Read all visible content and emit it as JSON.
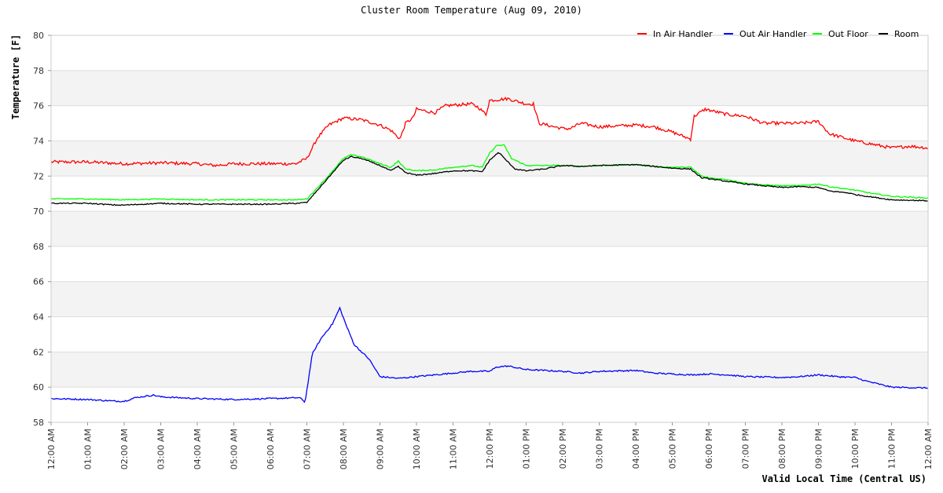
{
  "chart_data": {
    "type": "line",
    "title": "Cluster Room Temperature (Aug 09, 2010)",
    "xlabel": "Valid Local Time (Central US)",
    "ylabel": "Temperature [F]",
    "ylim": [
      58,
      80
    ],
    "yticks": [
      58,
      60,
      62,
      64,
      66,
      68,
      70,
      72,
      74,
      76,
      78,
      80
    ],
    "xlim": [
      0,
      24
    ],
    "x_tick_labels": [
      "12:00 AM",
      "01:00 AM",
      "02:00 AM",
      "03:00 AM",
      "04:00 AM",
      "05:00 AM",
      "06:00 AM",
      "07:00 AM",
      "08:00 AM",
      "09:00 AM",
      "10:00 AM",
      "11:00 AM",
      "12:00 PM",
      "01:00 PM",
      "02:00 PM",
      "03:00 PM",
      "04:00 PM",
      "05:00 PM",
      "06:00 PM",
      "07:00 PM",
      "08:00 PM",
      "09:00 PM",
      "10:00 PM",
      "11:00 PM",
      "12:00 AM"
    ],
    "grid": true,
    "legend_position": "top-right",
    "series": [
      {
        "name": "In Air Handler",
        "color": "#ff0000",
        "points": [
          [
            0,
            72.8
          ],
          [
            1,
            72.8
          ],
          [
            2,
            72.7
          ],
          [
            3,
            72.75
          ],
          [
            4,
            72.7
          ],
          [
            4.5,
            72.6
          ],
          [
            5,
            72.7
          ],
          [
            6,
            72.7
          ],
          [
            6.7,
            72.7
          ],
          [
            7,
            73.0
          ],
          [
            7.3,
            74.2
          ],
          [
            7.6,
            74.9
          ],
          [
            8,
            75.3
          ],
          [
            8.5,
            75.2
          ],
          [
            9,
            74.9
          ],
          [
            9.3,
            74.6
          ],
          [
            9.55,
            74.1
          ],
          [
            9.7,
            75.0
          ],
          [
            9.9,
            75.3
          ],
          [
            10,
            75.8
          ],
          [
            10.5,
            75.6
          ],
          [
            10.8,
            76.0
          ],
          [
            11.5,
            76.1
          ],
          [
            11.7,
            75.9
          ],
          [
            11.9,
            75.5
          ],
          [
            12,
            76.3
          ],
          [
            12.5,
            76.4
          ],
          [
            13,
            76.1
          ],
          [
            13.2,
            76.1
          ],
          [
            13.35,
            75.0
          ],
          [
            14,
            74.7
          ],
          [
            14.2,
            74.7
          ],
          [
            14.5,
            75.0
          ],
          [
            15,
            74.8
          ],
          [
            16,
            74.9
          ],
          [
            16.5,
            74.8
          ],
          [
            17,
            74.5
          ],
          [
            17.5,
            74.1
          ],
          [
            17.6,
            75.4
          ],
          [
            17.9,
            75.8
          ],
          [
            18.5,
            75.5
          ],
          [
            19,
            75.4
          ],
          [
            19.5,
            75.0
          ],
          [
            20,
            75.0
          ],
          [
            20.5,
            75.0
          ],
          [
            21,
            75.1
          ],
          [
            21.3,
            74.4
          ],
          [
            22,
            74.0
          ],
          [
            22.5,
            73.8
          ],
          [
            23,
            73.6
          ],
          [
            23.5,
            73.7
          ],
          [
            24,
            73.6
          ]
        ]
      },
      {
        "name": "Out Air Handler",
        "color": "#0000ff",
        "points": [
          [
            0,
            59.35
          ],
          [
            1,
            59.3
          ],
          [
            1.8,
            59.2
          ],
          [
            2,
            59.2
          ],
          [
            2.3,
            59.4
          ],
          [
            2.8,
            59.55
          ],
          [
            3,
            59.45
          ],
          [
            4,
            59.35
          ],
          [
            5,
            59.3
          ],
          [
            6,
            59.35
          ],
          [
            6.8,
            59.4
          ],
          [
            6.95,
            59.15
          ],
          [
            7.15,
            61.9
          ],
          [
            7.4,
            62.8
          ],
          [
            7.7,
            63.6
          ],
          [
            7.9,
            64.5
          ],
          [
            8.1,
            63.4
          ],
          [
            8.3,
            62.4
          ],
          [
            8.7,
            61.6
          ],
          [
            9,
            60.6
          ],
          [
            9.5,
            60.5
          ],
          [
            10,
            60.6
          ],
          [
            10.5,
            60.7
          ],
          [
            11,
            60.8
          ],
          [
            11.5,
            60.9
          ],
          [
            12,
            60.9
          ],
          [
            12.2,
            61.15
          ],
          [
            12.5,
            61.2
          ],
          [
            13,
            61.0
          ],
          [
            14,
            60.9
          ],
          [
            14.5,
            60.8
          ],
          [
            15,
            60.9
          ],
          [
            16,
            60.95
          ],
          [
            16.5,
            60.8
          ],
          [
            17,
            60.75
          ],
          [
            17.5,
            60.7
          ],
          [
            18,
            60.75
          ],
          [
            18.5,
            60.7
          ],
          [
            19,
            60.6
          ],
          [
            20,
            60.55
          ],
          [
            20.5,
            60.6
          ],
          [
            21,
            60.7
          ],
          [
            21.5,
            60.6
          ],
          [
            22,
            60.55
          ],
          [
            22.3,
            60.35
          ],
          [
            22.6,
            60.2
          ],
          [
            23,
            60.0
          ],
          [
            24,
            59.95
          ]
        ]
      },
      {
        "name": "Out Floor",
        "color": "#00ff00",
        "points": [
          [
            0,
            70.7
          ],
          [
            1,
            70.7
          ],
          [
            2,
            70.65
          ],
          [
            3,
            70.7
          ],
          [
            4,
            70.65
          ],
          [
            5,
            70.65
          ],
          [
            6,
            70.65
          ],
          [
            6.7,
            70.65
          ],
          [
            7,
            70.7
          ],
          [
            7.5,
            71.8
          ],
          [
            8,
            73.0
          ],
          [
            8.2,
            73.2
          ],
          [
            8.5,
            73.1
          ],
          [
            9,
            72.7
          ],
          [
            9.3,
            72.5
          ],
          [
            9.5,
            72.85
          ],
          [
            9.7,
            72.4
          ],
          [
            10,
            72.3
          ],
          [
            10.5,
            72.35
          ],
          [
            11,
            72.5
          ],
          [
            11.5,
            72.6
          ],
          [
            11.8,
            72.5
          ],
          [
            12,
            73.3
          ],
          [
            12.2,
            73.75
          ],
          [
            12.4,
            73.75
          ],
          [
            12.6,
            73.0
          ],
          [
            13,
            72.6
          ],
          [
            13.5,
            72.6
          ],
          [
            14,
            72.6
          ],
          [
            14.5,
            72.55
          ],
          [
            15,
            72.6
          ],
          [
            16,
            72.65
          ],
          [
            16.5,
            72.55
          ],
          [
            17,
            72.5
          ],
          [
            17.5,
            72.5
          ],
          [
            17.8,
            72.0
          ],
          [
            18,
            71.9
          ],
          [
            18.5,
            71.8
          ],
          [
            19,
            71.6
          ],
          [
            19.5,
            71.5
          ],
          [
            20,
            71.45
          ],
          [
            20.5,
            71.45
          ],
          [
            21,
            71.55
          ],
          [
            21.3,
            71.4
          ],
          [
            21.8,
            71.25
          ],
          [
            22,
            71.2
          ],
          [
            22.5,
            71.0
          ],
          [
            23,
            70.85
          ],
          [
            23.5,
            70.8
          ],
          [
            24,
            70.75
          ]
        ]
      },
      {
        "name": "Room",
        "color": "#000000",
        "points": [
          [
            0,
            70.45
          ],
          [
            1,
            70.45
          ],
          [
            1.8,
            70.35
          ],
          [
            2,
            70.35
          ],
          [
            3,
            70.45
          ],
          [
            4,
            70.4
          ],
          [
            5,
            70.4
          ],
          [
            6,
            70.4
          ],
          [
            6.7,
            70.45
          ],
          [
            7,
            70.5
          ],
          [
            7.5,
            71.7
          ],
          [
            8,
            72.9
          ],
          [
            8.2,
            73.1
          ],
          [
            8.5,
            73.0
          ],
          [
            9,
            72.6
          ],
          [
            9.3,
            72.3
          ],
          [
            9.5,
            72.55
          ],
          [
            9.7,
            72.2
          ],
          [
            10,
            72.05
          ],
          [
            10.5,
            72.15
          ],
          [
            11,
            72.3
          ],
          [
            11.5,
            72.3
          ],
          [
            11.8,
            72.25
          ],
          [
            12,
            72.9
          ],
          [
            12.25,
            73.35
          ],
          [
            12.5,
            72.8
          ],
          [
            12.7,
            72.4
          ],
          [
            13,
            72.3
          ],
          [
            13.5,
            72.4
          ],
          [
            14,
            72.6
          ],
          [
            14.5,
            72.55
          ],
          [
            15,
            72.6
          ],
          [
            16,
            72.65
          ],
          [
            16.5,
            72.55
          ],
          [
            17,
            72.45
          ],
          [
            17.5,
            72.4
          ],
          [
            17.8,
            71.9
          ],
          [
            18,
            71.85
          ],
          [
            18.5,
            71.7
          ],
          [
            19,
            71.55
          ],
          [
            19.5,
            71.45
          ],
          [
            20,
            71.35
          ],
          [
            20.5,
            71.4
          ],
          [
            21,
            71.35
          ],
          [
            21.3,
            71.15
          ],
          [
            21.8,
            71.05
          ],
          [
            22,
            70.95
          ],
          [
            22.5,
            70.8
          ],
          [
            23,
            70.65
          ],
          [
            24,
            70.6
          ]
        ]
      }
    ]
  }
}
